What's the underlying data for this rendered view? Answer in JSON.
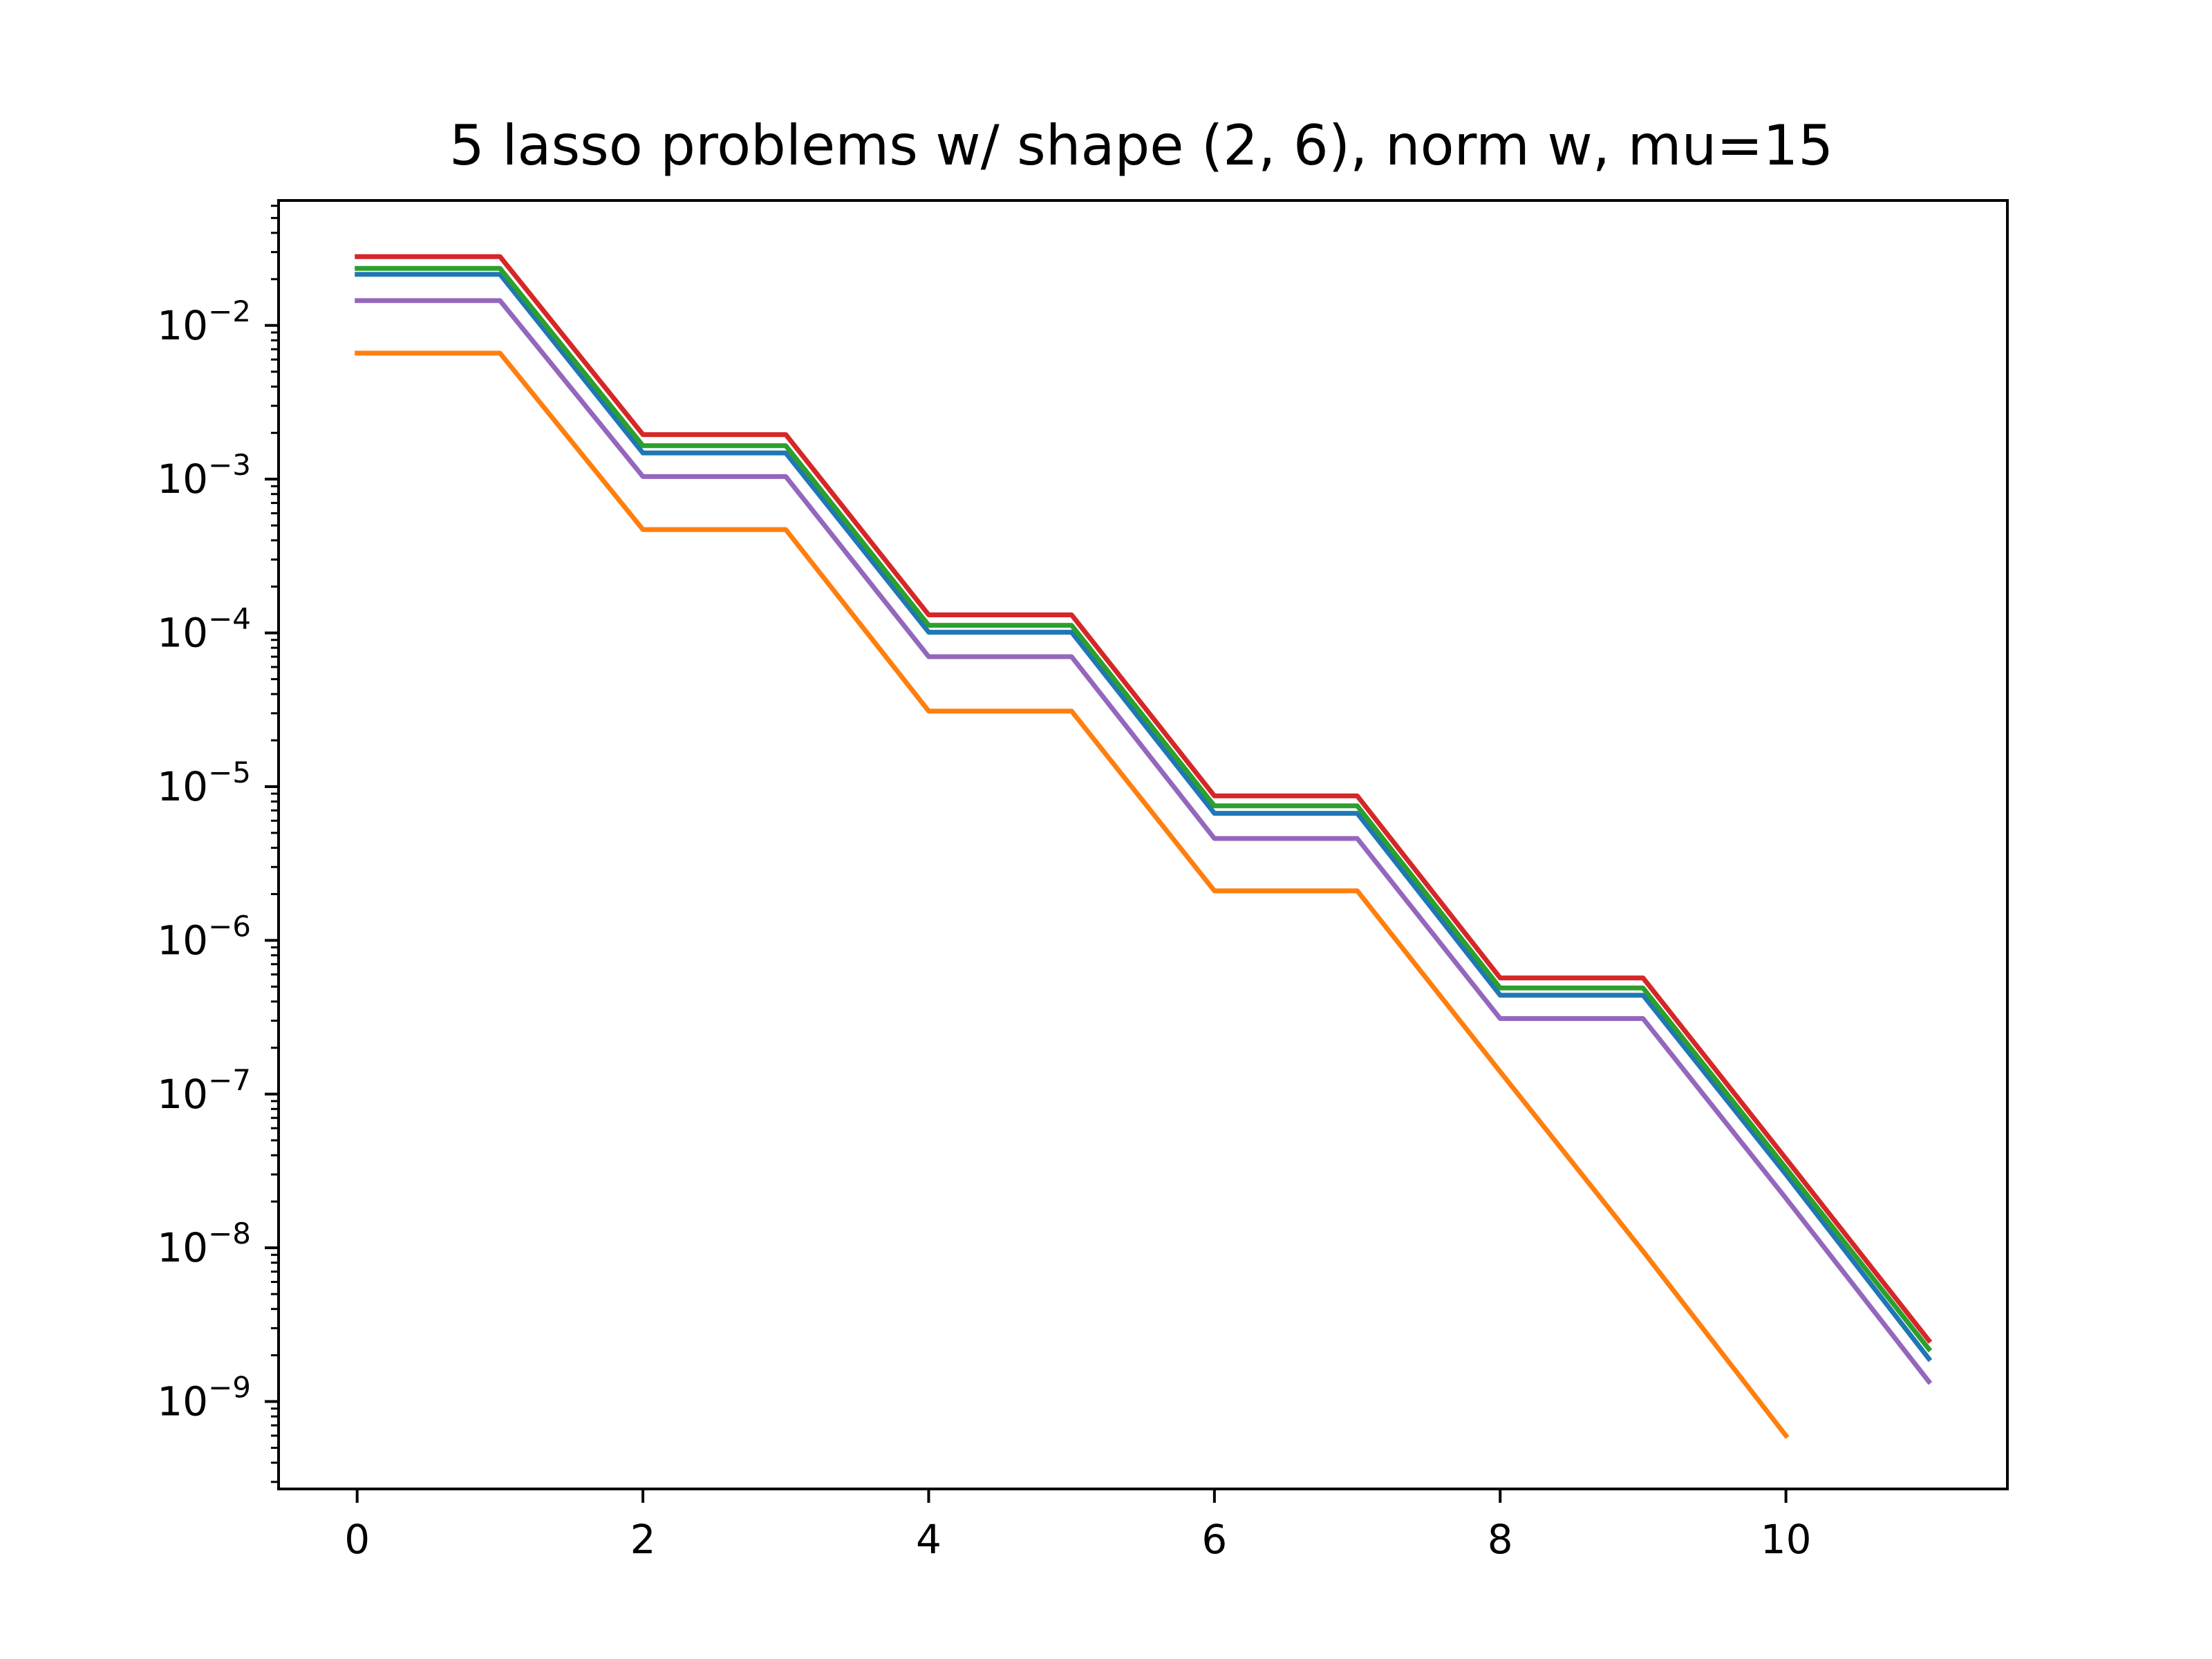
{
  "chart_data": {
    "type": "line",
    "title": "5 lasso problems w/ shape (2, 6), norm w, mu=15",
    "xlabel": "",
    "ylabel": "",
    "yscale": "log",
    "xlim": [
      -0.55,
      11.55
    ],
    "ylim": [
      2.7e-10,
      0.065
    ],
    "xticks": [
      0,
      2,
      4,
      6,
      8,
      10
    ],
    "yticks_exp": [
      -9,
      -8,
      -7,
      -6,
      -5,
      -4,
      -3,
      -2
    ],
    "grid": false,
    "legend": "none",
    "series": [
      {
        "color": "#1f77b4",
        "x": [
          0,
          1,
          2,
          3,
          4,
          5,
          6,
          7,
          8,
          9,
          10,
          11
        ],
        "values": [
          0.0215,
          0.0215,
          0.00148,
          0.00148,
          0.000101,
          0.000101,
          6.7e-06,
          6.7e-06,
          4.4e-07,
          4.4e-07,
          3e-08,
          1.9e-09
        ]
      },
      {
        "color": "#ff7f0e",
        "x": [
          0,
          1,
          2,
          3,
          4,
          5,
          6,
          7,
          8,
          9,
          10
        ],
        "values": [
          0.0066,
          0.0066,
          0.00047,
          0.00047,
          3.1e-05,
          3.1e-05,
          2.1e-06,
          2.1e-06,
          1.4e-07,
          9.5e-09,
          6e-10
        ]
      },
      {
        "color": "#2ca02c",
        "x": [
          0,
          1,
          2,
          3,
          4,
          5,
          6,
          7,
          8,
          9,
          10,
          11
        ],
        "values": [
          0.0235,
          0.0235,
          0.00165,
          0.00165,
          0.000112,
          0.000112,
          7.5e-06,
          7.5e-06,
          4.9e-07,
          4.9e-07,
          3.3e-08,
          2.2e-09
        ]
      },
      {
        "color": "#d62728",
        "x": [
          0,
          1,
          2,
          3,
          4,
          5,
          6,
          7,
          8,
          9,
          10,
          11
        ],
        "values": [
          0.028,
          0.028,
          0.00195,
          0.00195,
          0.000131,
          0.000131,
          8.7e-06,
          8.7e-06,
          5.7e-07,
          5.7e-07,
          3.8e-08,
          2.5e-09
        ]
      },
      {
        "color": "#9467bd",
        "x": [
          0,
          1,
          2,
          3,
          4,
          5,
          6,
          7,
          8,
          9,
          10,
          11
        ],
        "values": [
          0.0145,
          0.0145,
          0.00104,
          0.00104,
          7e-05,
          7e-05,
          4.6e-06,
          4.6e-06,
          3.1e-07,
          3.1e-07,
          2.1e-08,
          1.35e-09
        ]
      }
    ]
  }
}
